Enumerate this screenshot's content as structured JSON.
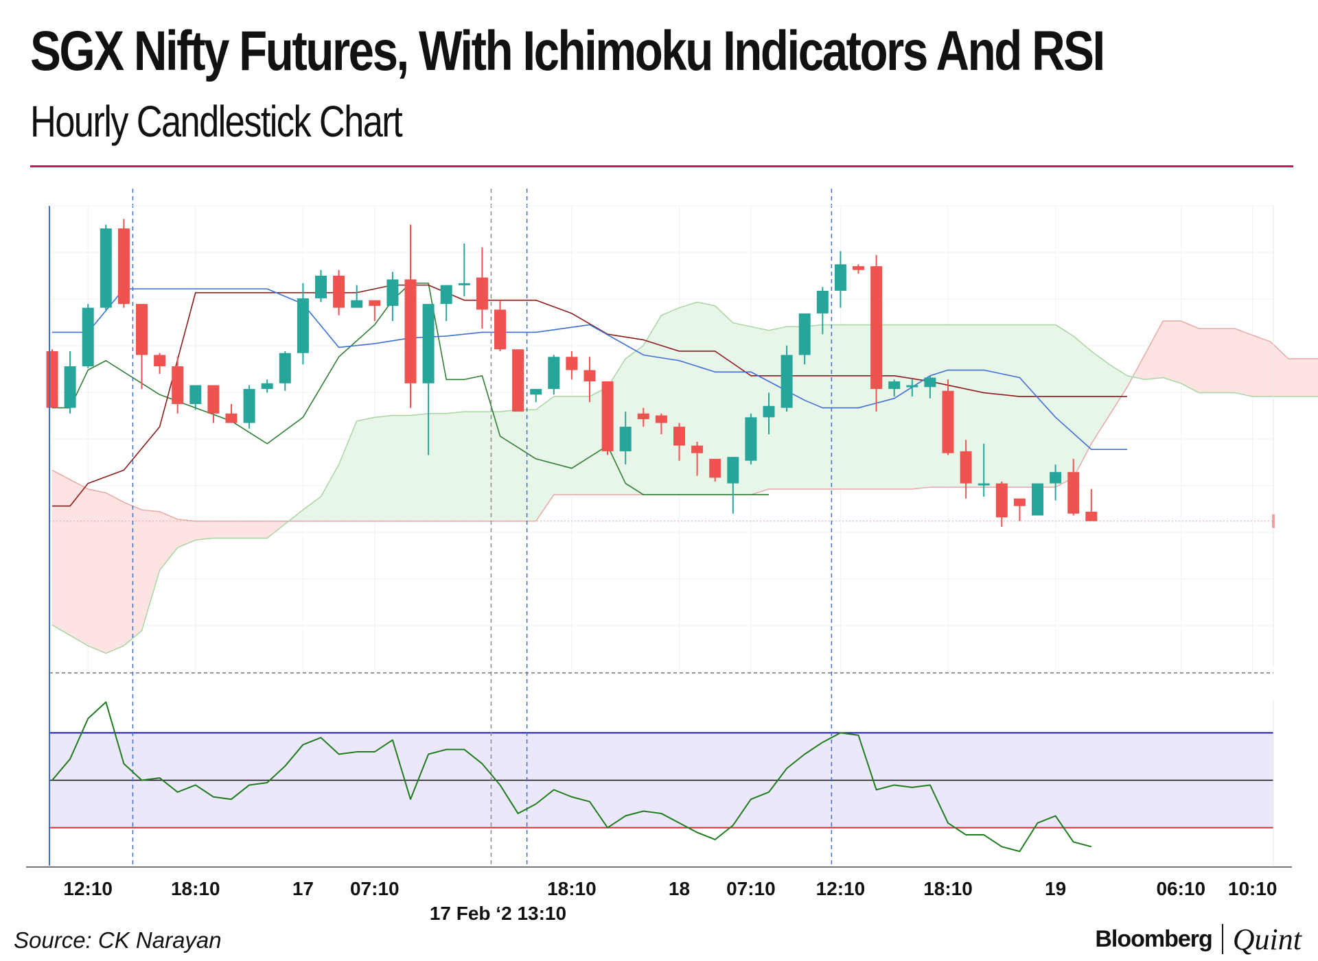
{
  "title": "SGX Nifty Futures, With Ichimoku Indicators And RSI",
  "subtitle": "Hourly Candlestick Chart",
  "source": "Source: CK Narayan",
  "brand": {
    "primary": "Bloomberg",
    "secondary": "Quint"
  },
  "colors": {
    "up": "#26a69a",
    "down": "#ef5350",
    "tenkan": "#3b6fd6",
    "kijun": "#8b1a1a",
    "chikou": "#2e7d32",
    "cloud_bull": "#e8f5e9",
    "cloud_bear": "#fde3e1",
    "rsi": "#1e7b1e",
    "rsi_band": "#ece8fb",
    "rsi_upper": "#1a1aa8",
    "rsi_lower": "#d32f2f",
    "title_rule": "#c2185b"
  },
  "chart_data": {
    "type": "candlestick",
    "x_tick_labels": [
      {
        "label": "12:10",
        "index": 2
      },
      {
        "label": "18:10",
        "index": 8
      },
      {
        "label": "17",
        "index": 14
      },
      {
        "label": "07:10",
        "index": 18
      },
      {
        "label": "18:10",
        "index": 29
      },
      {
        "label": "18",
        "index": 35
      },
      {
        "label": "07:10",
        "index": 39
      },
      {
        "label": "12:10",
        "index": 44
      },
      {
        "label": "18:10",
        "index": 50
      },
      {
        "label": "19",
        "index": 56
      },
      {
        "label": "06:10",
        "index": 63
      },
      {
        "label": "10:10",
        "index": 67
      }
    ],
    "crosshair_label": {
      "label": "17 Feb ‘2 13:10",
      "index": 24.5
    },
    "candles": [
      {
        "o": 75,
        "h": 76,
        "l": 45,
        "c": 45
      },
      {
        "o": 45,
        "h": 75,
        "l": 42,
        "c": 67
      },
      {
        "o": 67,
        "h": 100,
        "l": 66,
        "c": 98
      },
      {
        "o": 98,
        "h": 142,
        "l": 96,
        "c": 140
      },
      {
        "o": 140,
        "h": 145,
        "l": 98,
        "c": 100
      },
      {
        "o": 100,
        "h": 100,
        "l": 55,
        "c": 73
      },
      {
        "o": 73,
        "h": 74,
        "l": 63,
        "c": 67
      },
      {
        "o": 67,
        "h": 72,
        "l": 42,
        "c": 47
      },
      {
        "o": 47,
        "h": 57,
        "l": 44,
        "c": 57
      },
      {
        "o": 57,
        "h": 57,
        "l": 37,
        "c": 42
      },
      {
        "o": 42,
        "h": 47,
        "l": 37,
        "c": 37
      },
      {
        "o": 37,
        "h": 57,
        "l": 34,
        "c": 55
      },
      {
        "o": 55,
        "h": 60,
        "l": 53,
        "c": 58
      },
      {
        "o": 58,
        "h": 75,
        "l": 54,
        "c": 74
      },
      {
        "o": 74,
        "h": 111,
        "l": 68,
        "c": 103
      },
      {
        "o": 103,
        "h": 118,
        "l": 101,
        "c": 115
      },
      {
        "o": 115,
        "h": 118,
        "l": 94,
        "c": 98
      },
      {
        "o": 98,
        "h": 110,
        "l": 98,
        "c": 102
      },
      {
        "o": 102,
        "h": 102,
        "l": 91,
        "c": 99
      },
      {
        "o": 99,
        "h": 117,
        "l": 91,
        "c": 113
      },
      {
        "o": 113,
        "h": 142,
        "l": 45,
        "c": 58
      },
      {
        "o": 58,
        "h": 100,
        "l": 20,
        "c": 100
      },
      {
        "o": 100,
        "h": 108,
        "l": 91,
        "c": 110
      },
      {
        "o": 110,
        "h": 132,
        "l": 104,
        "c": 111
      },
      {
        "o": 114,
        "h": 130,
        "l": 87,
        "c": 97
      },
      {
        "o": 97,
        "h": 102,
        "l": 75,
        "c": 76
      },
      {
        "o": 76,
        "h": 75,
        "l": 45,
        "c": 43
      },
      {
        "o": 52,
        "h": 55,
        "l": 48,
        "c": 55
      },
      {
        "o": 55,
        "h": 73,
        "l": 52,
        "c": 72
      },
      {
        "o": 72,
        "h": 75,
        "l": 60,
        "c": 65
      },
      {
        "o": 65,
        "h": 72,
        "l": 48,
        "c": 59
      },
      {
        "o": 59,
        "h": 59,
        "l": 20,
        "c": 22
      },
      {
        "o": 22,
        "h": 43,
        "l": 15,
        "c": 35
      },
      {
        "o": 42,
        "h": 45,
        "l": 35,
        "c": 39
      },
      {
        "o": 41,
        "h": 42,
        "l": 31,
        "c": 37
      },
      {
        "o": 35,
        "h": 37,
        "l": 17,
        "c": 25
      },
      {
        "o": 25,
        "h": 27,
        "l": 9,
        "c": 21
      },
      {
        "o": 18,
        "h": 18,
        "l": 6,
        "c": 8
      },
      {
        "o": 5,
        "h": 19,
        "l": -11,
        "c": 19
      },
      {
        "o": 17,
        "h": 42,
        "l": 15,
        "c": 40
      },
      {
        "o": 40,
        "h": 53,
        "l": 31,
        "c": 46
      },
      {
        "o": 45,
        "h": 78,
        "l": 43,
        "c": 73
      },
      {
        "o": 73,
        "h": 95,
        "l": 68,
        "c": 95
      },
      {
        "o": 95,
        "h": 109,
        "l": 84,
        "c": 107
      },
      {
        "o": 107,
        "h": 128,
        "l": 98,
        "c": 121
      },
      {
        "o": 120,
        "h": 121,
        "l": 116,
        "c": 118
      },
      {
        "o": 120,
        "h": 126,
        "l": 43,
        "c": 55
      },
      {
        "o": 55,
        "h": 60,
        "l": 51,
        "c": 59
      },
      {
        "o": 57,
        "h": 60,
        "l": 51,
        "c": 57
      },
      {
        "o": 56,
        "h": 62,
        "l": 50,
        "c": 61
      },
      {
        "o": 54,
        "h": 60,
        "l": 20,
        "c": 21
      },
      {
        "o": 22,
        "h": 28,
        "l": -3,
        "c": 5
      },
      {
        "o": 5,
        "h": 26,
        "l": -2,
        "c": 5
      },
      {
        "o": 5,
        "h": 6,
        "l": -18,
        "c": -13
      },
      {
        "o": -3,
        "h": -3,
        "l": -15,
        "c": -7
      },
      {
        "o": -12,
        "h": 5,
        "l": -12,
        "c": 5
      },
      {
        "o": 5,
        "h": 15,
        "l": -4,
        "c": 11
      },
      {
        "o": 11,
        "h": 18,
        "l": -12,
        "c": -11
      },
      {
        "o": -10,
        "h": 2,
        "l": -15,
        "c": -15
      }
    ],
    "tenkan": [
      [
        0,
        85
      ],
      [
        2,
        85
      ],
      [
        4,
        108
      ],
      [
        7,
        108
      ],
      [
        9,
        108
      ],
      [
        12,
        108
      ],
      [
        14,
        100
      ],
      [
        16,
        77
      ],
      [
        18,
        79
      ],
      [
        20,
        82
      ],
      [
        22,
        83
      ],
      [
        24,
        85
      ],
      [
        27,
        85
      ],
      [
        30,
        89
      ],
      [
        33,
        73
      ],
      [
        35,
        70
      ],
      [
        37,
        64
      ],
      [
        39,
        64
      ],
      [
        42,
        49
      ],
      [
        43,
        45
      ],
      [
        45,
        45
      ],
      [
        47,
        50
      ],
      [
        49,
        62
      ],
      [
        50,
        65
      ],
      [
        52,
        65
      ],
      [
        54,
        61
      ],
      [
        56,
        40
      ],
      [
        58,
        23
      ],
      [
        60,
        23
      ]
    ],
    "kijun": [
      [
        0,
        -7
      ],
      [
        1,
        -7
      ],
      [
        2,
        5
      ],
      [
        4,
        12
      ],
      [
        6,
        35
      ],
      [
        8,
        106
      ],
      [
        10,
        106
      ],
      [
        12,
        106
      ],
      [
        15,
        106
      ],
      [
        17,
        106
      ],
      [
        19,
        110
      ],
      [
        21,
        110
      ],
      [
        23,
        102
      ],
      [
        25,
        102
      ],
      [
        27,
        102
      ],
      [
        29,
        95
      ],
      [
        31,
        84
      ],
      [
        33,
        81
      ],
      [
        35,
        75
      ],
      [
        37,
        75
      ],
      [
        39,
        62
      ],
      [
        42,
        62
      ],
      [
        45,
        62
      ],
      [
        47,
        62
      ],
      [
        49,
        59
      ],
      [
        50,
        57
      ],
      [
        52,
        53
      ],
      [
        54,
        51
      ],
      [
        56,
        51
      ],
      [
        60,
        51
      ]
    ],
    "chikou": [
      [
        0,
        45
      ],
      [
        1,
        45
      ],
      [
        2,
        65
      ],
      [
        3,
        70
      ],
      [
        5,
        58
      ],
      [
        6,
        52
      ],
      [
        8,
        45
      ],
      [
        10,
        38
      ],
      [
        12,
        26
      ],
      [
        14,
        40
      ],
      [
        16,
        72
      ],
      [
        18,
        89
      ],
      [
        19,
        102
      ],
      [
        20,
        111
      ],
      [
        21,
        111
      ],
      [
        22,
        60
      ],
      [
        23,
        60
      ],
      [
        24,
        62
      ],
      [
        25,
        30
      ],
      [
        27,
        18
      ],
      [
        29,
        13
      ],
      [
        31,
        25
      ],
      [
        32,
        5
      ],
      [
        33,
        -1
      ],
      [
        35,
        -1
      ],
      [
        37,
        -1
      ],
      [
        39,
        -1
      ],
      [
        40,
        -1
      ]
    ],
    "span_a": [
      [
        0,
        12
      ],
      [
        2,
        2
      ],
      [
        3,
        0
      ],
      [
        4,
        -5
      ],
      [
        5,
        -9
      ],
      [
        6,
        -10
      ],
      [
        7,
        -14
      ],
      [
        8,
        -15
      ],
      [
        9,
        -15
      ],
      [
        10,
        -15
      ],
      [
        11,
        -15
      ],
      [
        12,
        -15
      ],
      [
        13,
        -15
      ],
      [
        14,
        -15
      ],
      [
        15,
        -15
      ],
      [
        16,
        -15
      ],
      [
        17,
        -15
      ],
      [
        18,
        -15
      ],
      [
        19,
        -15
      ],
      [
        20,
        -15
      ],
      [
        21,
        -15
      ],
      [
        22,
        -15
      ],
      [
        23,
        -15
      ],
      [
        24,
        -15
      ],
      [
        25,
        -15
      ],
      [
        26,
        -15
      ],
      [
        27,
        -15
      ],
      [
        28,
        -1
      ],
      [
        29,
        -1
      ],
      [
        30,
        -1
      ],
      [
        31,
        -1
      ],
      [
        32,
        -1
      ],
      [
        33,
        -1
      ],
      [
        34,
        -1
      ],
      [
        35,
        -1
      ],
      [
        36,
        -1
      ],
      [
        37,
        -1
      ],
      [
        38,
        -1
      ],
      [
        39,
        -1
      ],
      [
        40,
        2
      ],
      [
        41,
        2
      ],
      [
        42,
        2
      ],
      [
        43,
        2
      ],
      [
        44,
        2
      ],
      [
        45,
        2
      ],
      [
        46,
        2
      ],
      [
        47,
        2
      ],
      [
        48,
        2
      ],
      [
        49,
        3
      ],
      [
        50,
        3
      ],
      [
        51,
        3
      ],
      [
        52,
        3
      ],
      [
        53,
        3
      ],
      [
        54,
        3
      ],
      [
        55,
        3
      ],
      [
        56,
        3
      ],
      [
        57,
        8
      ],
      [
        58,
        26
      ],
      [
        60,
        56
      ],
      [
        62,
        91
      ],
      [
        63,
        91
      ],
      [
        64,
        87
      ],
      [
        66,
        87
      ],
      [
        68,
        80
      ],
      [
        69,
        71
      ],
      [
        70,
        71
      ],
      [
        71,
        71
      ]
    ],
    "span_b": [
      [
        0,
        -70
      ],
      [
        2,
        -81
      ],
      [
        3,
        -85
      ],
      [
        4,
        -81
      ],
      [
        5,
        -73
      ],
      [
        6,
        -41
      ],
      [
        7,
        -29
      ],
      [
        8,
        -25
      ],
      [
        9,
        -24
      ],
      [
        10,
        -24
      ],
      [
        11,
        -24
      ],
      [
        12,
        -24
      ],
      [
        14,
        -9
      ],
      [
        15,
        -2
      ],
      [
        16,
        15
      ],
      [
        17,
        38
      ],
      [
        18,
        40
      ],
      [
        19,
        41
      ],
      [
        20,
        41
      ],
      [
        21,
        42
      ],
      [
        22,
        42
      ],
      [
        23,
        43
      ],
      [
        24,
        43
      ],
      [
        25,
        43
      ],
      [
        26,
        44
      ],
      [
        27,
        44
      ],
      [
        28,
        51
      ],
      [
        29,
        51
      ],
      [
        30,
        51
      ],
      [
        31,
        56
      ],
      [
        32,
        71
      ],
      [
        33,
        78
      ],
      [
        34,
        94
      ],
      [
        35,
        98
      ],
      [
        36,
        101
      ],
      [
        37,
        99
      ],
      [
        38,
        90
      ],
      [
        39,
        88
      ],
      [
        40,
        86
      ],
      [
        41,
        88
      ],
      [
        42,
        88
      ],
      [
        43,
        89
      ],
      [
        44,
        89
      ],
      [
        45,
        89
      ],
      [
        46,
        89
      ],
      [
        47,
        89
      ],
      [
        48,
        89
      ],
      [
        49,
        89
      ],
      [
        50,
        89
      ],
      [
        51,
        89
      ],
      [
        52,
        89
      ],
      [
        53,
        89
      ],
      [
        54,
        89
      ],
      [
        55,
        89
      ],
      [
        56,
        89
      ],
      [
        57,
        83
      ],
      [
        58,
        75
      ],
      [
        59,
        68
      ],
      [
        60,
        62
      ],
      [
        61,
        60
      ],
      [
        62,
        61
      ],
      [
        63,
        58
      ],
      [
        64,
        53
      ],
      [
        65,
        53
      ],
      [
        66,
        53
      ],
      [
        67,
        51
      ],
      [
        68,
        51
      ],
      [
        69,
        51
      ],
      [
        70,
        51
      ],
      [
        71,
        51
      ]
    ],
    "rsi": {
      "upper": 70,
      "middle": 50,
      "lower": 30,
      "ylim": [
        14,
        84
      ],
      "values": [
        [
          0,
          50
        ],
        [
          1,
          59
        ],
        [
          2,
          76
        ],
        [
          3,
          83
        ],
        [
          4,
          57
        ],
        [
          5,
          50
        ],
        [
          6,
          51
        ],
        [
          7,
          45
        ],
        [
          8,
          48
        ],
        [
          9,
          43
        ],
        [
          10,
          42
        ],
        [
          11,
          48
        ],
        [
          12,
          49
        ],
        [
          13,
          56
        ],
        [
          14,
          65
        ],
        [
          15,
          68
        ],
        [
          16,
          61
        ],
        [
          17,
          62
        ],
        [
          18,
          62
        ],
        [
          19,
          67
        ],
        [
          20,
          42
        ],
        [
          21,
          61
        ],
        [
          22,
          63
        ],
        [
          23,
          63
        ],
        [
          24,
          57
        ],
        [
          25,
          48
        ],
        [
          26,
          36
        ],
        [
          27,
          40
        ],
        [
          28,
          46
        ],
        [
          29,
          43
        ],
        [
          30,
          41
        ],
        [
          31,
          30
        ],
        [
          32,
          35
        ],
        [
          33,
          37
        ],
        [
          34,
          36
        ],
        [
          35,
          32
        ],
        [
          36,
          28
        ],
        [
          37,
          25
        ],
        [
          38,
          31
        ],
        [
          39,
          42
        ],
        [
          40,
          45
        ],
        [
          41,
          55
        ],
        [
          42,
          61
        ],
        [
          43,
          66
        ],
        [
          44,
          70
        ],
        [
          45,
          69
        ],
        [
          46,
          46
        ],
        [
          47,
          48
        ],
        [
          48,
          47
        ],
        [
          49,
          48
        ],
        [
          50,
          32
        ],
        [
          51,
          27
        ],
        [
          52,
          27
        ],
        [
          53,
          22
        ],
        [
          54,
          20
        ],
        [
          55,
          32
        ],
        [
          56,
          35
        ],
        [
          57,
          24
        ],
        [
          58,
          22
        ]
      ]
    },
    "ylim": [
      -95,
      152
    ]
  }
}
